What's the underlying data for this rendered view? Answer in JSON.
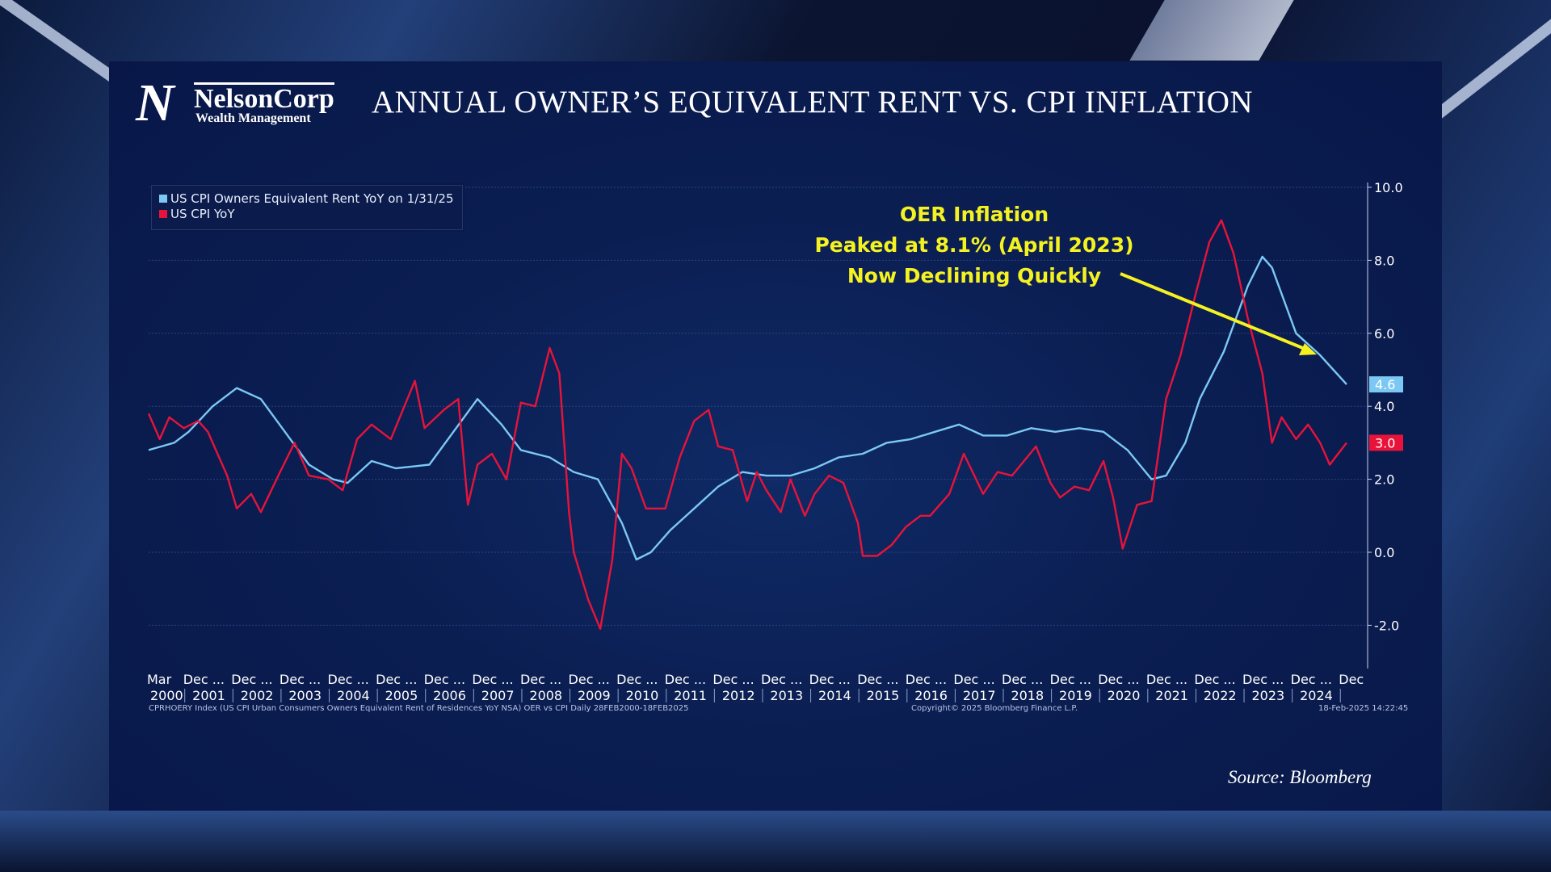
{
  "logo": {
    "mark": "N",
    "name": "NelsonCorp",
    "subtitle": "Wealth Management"
  },
  "title": "ANNUAL OWNER’S EQUIVALENT RENT VS. CPI INFLATION",
  "annotation": {
    "line1": "OER Inflation",
    "line2": "Peaked at 8.1% (April 2023)",
    "line3": "Now Declining Quickly",
    "color": "#f5f221"
  },
  "footer": {
    "left": "CPRHOERY Index (US CPI Urban Consumers Owners Equivalent Rent of Residences YoY NSA) OER vs CPI  Daily 28FEB2000-18FEB2025",
    "center": "Copyright© 2025 Bloomberg Finance L.P.",
    "right": "18-Feb-2025 14:22:45"
  },
  "source": "Source: Bloomberg",
  "chart_data": {
    "type": "line",
    "title": "ANNUAL OWNER’S EQUIVALENT RENT VS. CPI INFLATION",
    "ylim": [
      -3.2,
      10.2
    ],
    "yticks": [
      "10.0",
      "8.0",
      "6.0",
      "4.0",
      "2.0",
      "0.0",
      "-2.0"
    ],
    "ytick_values": [
      10,
      8,
      6,
      4,
      2,
      0,
      -2
    ],
    "xlim": [
      "2000-03",
      "2025-01"
    ],
    "xticks_top": [
      "Mar",
      "Dec ...",
      "Dec ...",
      "Dec ...",
      "Dec ...",
      "Dec ...",
      "Dec ...",
      "Dec ...",
      "Dec ...",
      "Dec ...",
      "Dec ...",
      "Dec ...",
      "Dec ...",
      "Dec ...",
      "Dec ...",
      "Dec ...",
      "Dec ...",
      "Dec ...",
      "Dec ...",
      "Dec ...",
      "Dec ...",
      "Dec ...",
      "Dec ...",
      "Dec ...",
      "Dec ...",
      "Dec"
    ],
    "xticks_bottom": [
      "2000",
      "2001",
      "2002",
      "2003",
      "2004",
      "2005",
      "2006",
      "2007",
      "2008",
      "2009",
      "2010",
      "2011",
      "2012",
      "2013",
      "2014",
      "2015",
      "2016",
      "2017",
      "2018",
      "2019",
      "2020",
      "2021",
      "2022",
      "2023",
      "2024"
    ],
    "grid": true,
    "legend_placement": "top-left",
    "series": [
      {
        "name": "US CPI Owners Equivalent Rent YoY on 1/31/25",
        "color": "#7cc8f4",
        "last_value": "4.6",
        "x": [
          2000.17,
          2000.7,
          2001.0,
          2001.5,
          2002.0,
          2002.5,
          2003.0,
          2003.5,
          2004.0,
          2004.3,
          2004.8,
          2005.3,
          2006.0,
          2006.5,
          2007.0,
          2007.5,
          2007.9,
          2008.5,
          2009.0,
          2009.5,
          2010.0,
          2010.3,
          2010.6,
          2011.0,
          2011.5,
          2012.0,
          2012.5,
          2013.0,
          2013.5,
          2014.0,
          2014.5,
          2015.0,
          2015.5,
          2016.0,
          2016.5,
          2017.0,
          2017.5,
          2018.0,
          2018.5,
          2019.0,
          2019.5,
          2020.0,
          2020.5,
          2021.0,
          2021.3,
          2021.7,
          2022.0,
          2022.5,
          2023.0,
          2023.3,
          2023.5,
          2024.0,
          2024.5,
          2025.05
        ],
        "y": [
          2.8,
          3.0,
          3.3,
          4.0,
          4.5,
          4.2,
          3.3,
          2.4,
          2.0,
          1.9,
          2.5,
          2.3,
          2.4,
          3.3,
          4.2,
          3.5,
          2.8,
          2.6,
          2.2,
          2.0,
          0.8,
          -0.2,
          0.0,
          0.6,
          1.2,
          1.8,
          2.2,
          2.1,
          2.1,
          2.3,
          2.6,
          2.7,
          3.0,
          3.1,
          3.3,
          3.5,
          3.2,
          3.2,
          3.4,
          3.3,
          3.4,
          3.3,
          2.8,
          2.0,
          2.1,
          3.0,
          4.2,
          5.5,
          7.3,
          8.1,
          7.8,
          6.0,
          5.4,
          4.6
        ]
      },
      {
        "name": "US CPI YoY",
        "color": "#e8133a",
        "last_value": "3.0",
        "x": [
          2000.17,
          2000.4,
          2000.6,
          2000.9,
          2001.2,
          2001.4,
          2001.8,
          2002.0,
          2002.3,
          2002.5,
          2002.9,
          2003.2,
          2003.5,
          2003.9,
          2004.2,
          2004.5,
          2004.8,
          2005.2,
          2005.7,
          2005.9,
          2006.3,
          2006.6,
          2006.8,
          2007.0,
          2007.3,
          2007.6,
          2007.9,
          2008.2,
          2008.5,
          2008.7,
          2008.9,
          2009.0,
          2009.3,
          2009.55,
          2009.8,
          2010.0,
          2010.2,
          2010.5,
          2010.9,
          2011.2,
          2011.5,
          2011.8,
          2012.0,
          2012.3,
          2012.6,
          2012.8,
          2013.0,
          2013.3,
          2013.5,
          2013.8,
          2014.0,
          2014.3,
          2014.6,
          2014.9,
          2015.0,
          2015.3,
          2015.6,
          2015.9,
          2016.2,
          2016.4,
          2016.8,
          2017.1,
          2017.5,
          2017.8,
          2018.1,
          2018.6,
          2018.9,
          2019.1,
          2019.4,
          2019.7,
          2020.0,
          2020.2,
          2020.4,
          2020.7,
          2021.0,
          2021.3,
          2021.6,
          2021.9,
          2022.2,
          2022.45,
          2022.7,
          2023.0,
          2023.3,
          2023.5,
          2023.7,
          2024.0,
          2024.25,
          2024.5,
          2024.7,
          2025.05
        ],
        "y": [
          3.8,
          3.1,
          3.7,
          3.4,
          3.6,
          3.3,
          2.1,
          1.2,
          1.6,
          1.1,
          2.2,
          3.0,
          2.1,
          2.0,
          1.7,
          3.1,
          3.5,
          3.1,
          4.7,
          3.4,
          3.9,
          4.2,
          1.3,
          2.4,
          2.7,
          2.0,
          4.1,
          4.0,
          5.6,
          4.9,
          1.1,
          0.0,
          -1.3,
          -2.1,
          -0.2,
          2.7,
          2.3,
          1.2,
          1.2,
          2.6,
          3.6,
          3.9,
          2.9,
          2.8,
          1.4,
          2.2,
          1.7,
          1.1,
          2.0,
          1.0,
          1.6,
          2.1,
          1.9,
          0.8,
          -0.1,
          -0.1,
          0.2,
          0.7,
          1.0,
          1.0,
          1.6,
          2.7,
          1.6,
          2.2,
          2.1,
          2.9,
          1.9,
          1.5,
          1.8,
          1.7,
          2.5,
          1.5,
          0.1,
          1.3,
          1.4,
          4.2,
          5.4,
          7.0,
          8.5,
          9.1,
          8.2,
          6.4,
          4.9,
          3.0,
          3.7,
          3.1,
          3.5,
          3.0,
          2.4,
          3.0
        ]
      }
    ]
  }
}
